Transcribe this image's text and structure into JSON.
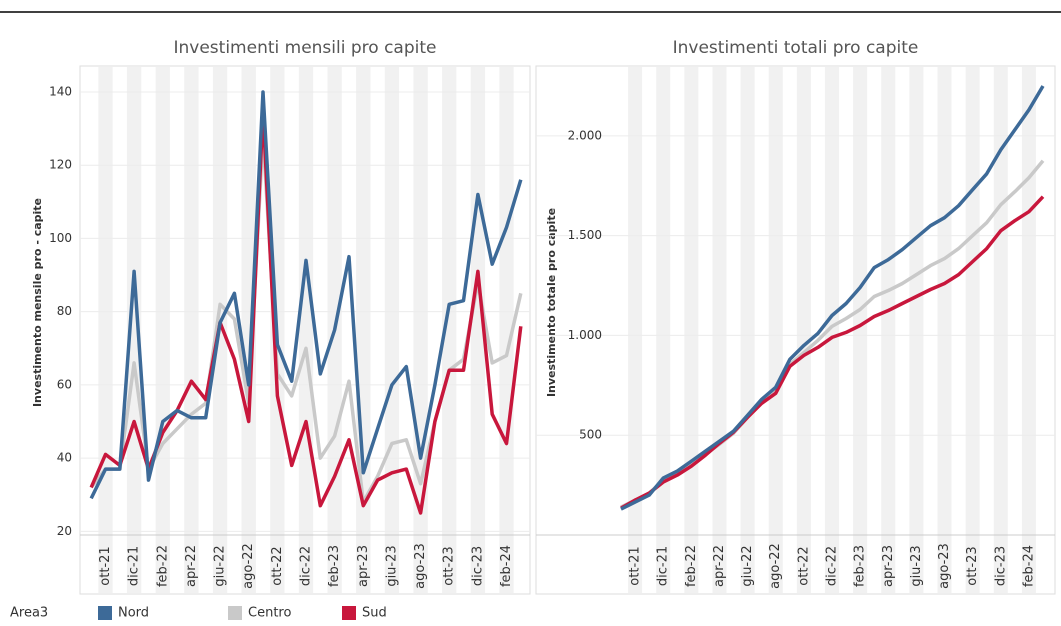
{
  "legend_title": "Area3",
  "chart_data": [
    {
      "type": "line",
      "title": "Investimenti mensili pro capite",
      "y_label": "Investimento mensile pro - capite",
      "categories": [
        null,
        "ott-21",
        null,
        "dic-21",
        null,
        "feb-22",
        null,
        "apr-22",
        null,
        "giu-22",
        null,
        "ago-22",
        null,
        "ott-22",
        null,
        "dic-22",
        null,
        "feb-23",
        null,
        "apr-23",
        null,
        "giu-23",
        null,
        "ago-23",
        null,
        "ott-23",
        null,
        "dic-23",
        null,
        "feb-24",
        null
      ],
      "ylim": [
        19,
        146
      ],
      "yticks": [
        20,
        40,
        60,
        80,
        100,
        120,
        140
      ],
      "grid": true,
      "series": [
        {
          "name": "Nord",
          "color": "#3d6a98",
          "values": [
            29,
            37,
            37,
            91,
            34,
            50,
            53,
            51,
            51,
            77,
            85,
            60,
            140,
            71,
            61,
            94,
            63,
            75,
            95,
            36,
            48,
            60,
            65,
            40,
            60,
            82,
            83,
            112,
            93,
            103,
            116
          ]
        },
        {
          "name": "Centro",
          "color": "#c9c9c9",
          "values": [
            32,
            37,
            37,
            66,
            37,
            44,
            48,
            52,
            55,
            82,
            78,
            55,
            128,
            63,
            57,
            70,
            40,
            46,
            61,
            28,
            35,
            44,
            45,
            33,
            50,
            64,
            67,
            88,
            66,
            68,
            85
          ]
        },
        {
          "name": "Sud",
          "color": "#c8173c",
          "values": [
            32,
            41,
            38,
            50,
            37,
            47,
            53,
            61,
            56,
            77,
            67,
            50,
            135,
            57,
            38,
            50,
            27,
            35,
            45,
            27,
            34,
            36,
            37,
            25,
            50,
            64,
            64,
            91,
            52,
            44,
            76
          ]
        }
      ]
    },
    {
      "type": "line",
      "title": "Investimenti totali pro capite",
      "y_label": "Investimento totale pro capite",
      "categories": [
        null,
        "ott-21",
        null,
        "dic-21",
        null,
        "feb-22",
        null,
        "apr-22",
        null,
        "giu-22",
        null,
        "ago-22",
        null,
        "ott-22",
        null,
        "dic-22",
        null,
        "feb-23",
        null,
        "apr-23",
        null,
        "giu-23",
        null,
        "ago-23",
        null,
        "ott-23",
        null,
        "dic-23",
        null,
        "feb-24",
        null
      ],
      "ylim": [
        0,
        2330
      ],
      "yticks": [
        500,
        {
          "value": 1000,
          "label": "1.000"
        },
        {
          "value": 1500,
          "label": "1.500"
        },
        {
          "value": 2000,
          "label": "2.000"
        }
      ],
      "grid": true,
      "series": [
        {
          "name": "Nord",
          "color": "#3d6a98",
          "values": [
            130,
            165,
            200,
            285,
            320,
            370,
            420,
            470,
            520,
            600,
            680,
            740,
            880,
            950,
            1010,
            1100,
            1160,
            1240,
            1340,
            1380,
            1430,
            1490,
            1550,
            1590,
            1650,
            1730,
            1810,
            1930,
            2030,
            2130,
            2250
          ]
        },
        {
          "name": "Centro",
          "color": "#c9c9c9",
          "values": [
            140,
            175,
            210,
            275,
            310,
            355,
            405,
            455,
            510,
            590,
            670,
            725,
            855,
            915,
            975,
            1045,
            1085,
            1130,
            1195,
            1225,
            1260,
            1305,
            1350,
            1385,
            1435,
            1500,
            1565,
            1655,
            1720,
            1790,
            1875
          ]
        },
        {
          "name": "Sud",
          "color": "#c8173c",
          "values": [
            135,
            175,
            210,
            265,
            300,
            345,
            400,
            460,
            515,
            590,
            660,
            710,
            845,
            900,
            940,
            990,
            1015,
            1050,
            1095,
            1125,
            1160,
            1195,
            1230,
            1260,
            1305,
            1370,
            1435,
            1525,
            1575,
            1620,
            1695
          ]
        }
      ]
    }
  ]
}
